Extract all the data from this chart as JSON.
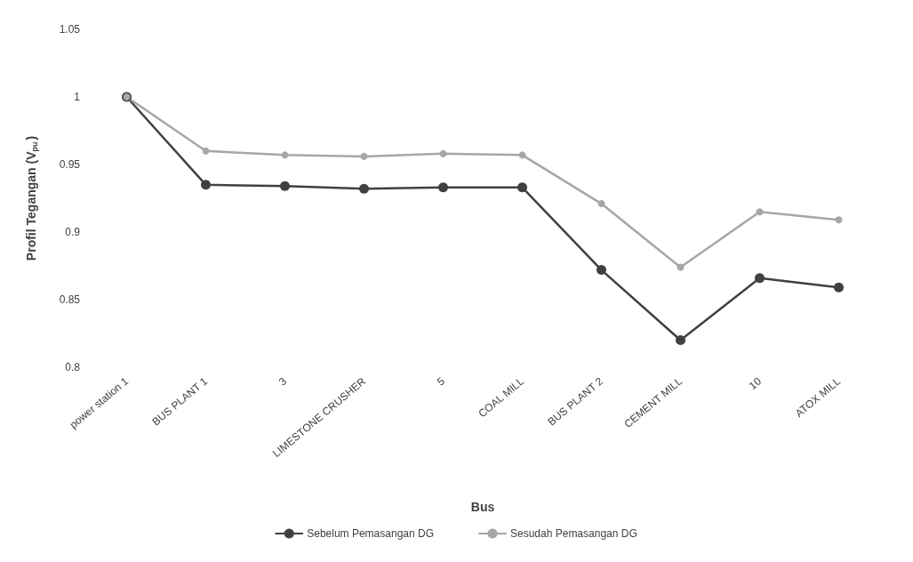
{
  "chart_data": {
    "type": "line",
    "xlabel": "Bus",
    "ylabel": "Profil Tegangan (V$_{pu}$)",
    "categories": [
      "power station 1",
      "BUS PLANT 1",
      "3",
      "LIMESTONE CRUSHER",
      "5",
      "COAL MILL",
      "BUS PLANT 2",
      "CEMENT MILL",
      "10",
      "ATOX MILL"
    ],
    "series": [
      {
        "name": "Sebelum Pemasangan DG",
        "color": "#404040",
        "values": [
          1.0,
          0.935,
          0.934,
          0.932,
          0.933,
          0.933,
          0.872,
          0.82,
          0.866,
          0.859
        ]
      },
      {
        "name": "Sesudah Pemasangan DG",
        "color": "#a6a6a6",
        "values": [
          1.0,
          0.96,
          0.957,
          0.956,
          0.958,
          0.957,
          0.921,
          0.874,
          0.915,
          0.909
        ]
      }
    ],
    "ylim": [
      0.8,
      1.05
    ],
    "yticks": [
      0.8,
      0.85,
      0.9,
      0.95,
      1,
      1.05
    ],
    "grid": false,
    "legend": "bottom",
    "marker": "circle",
    "line_style": "solid"
  }
}
